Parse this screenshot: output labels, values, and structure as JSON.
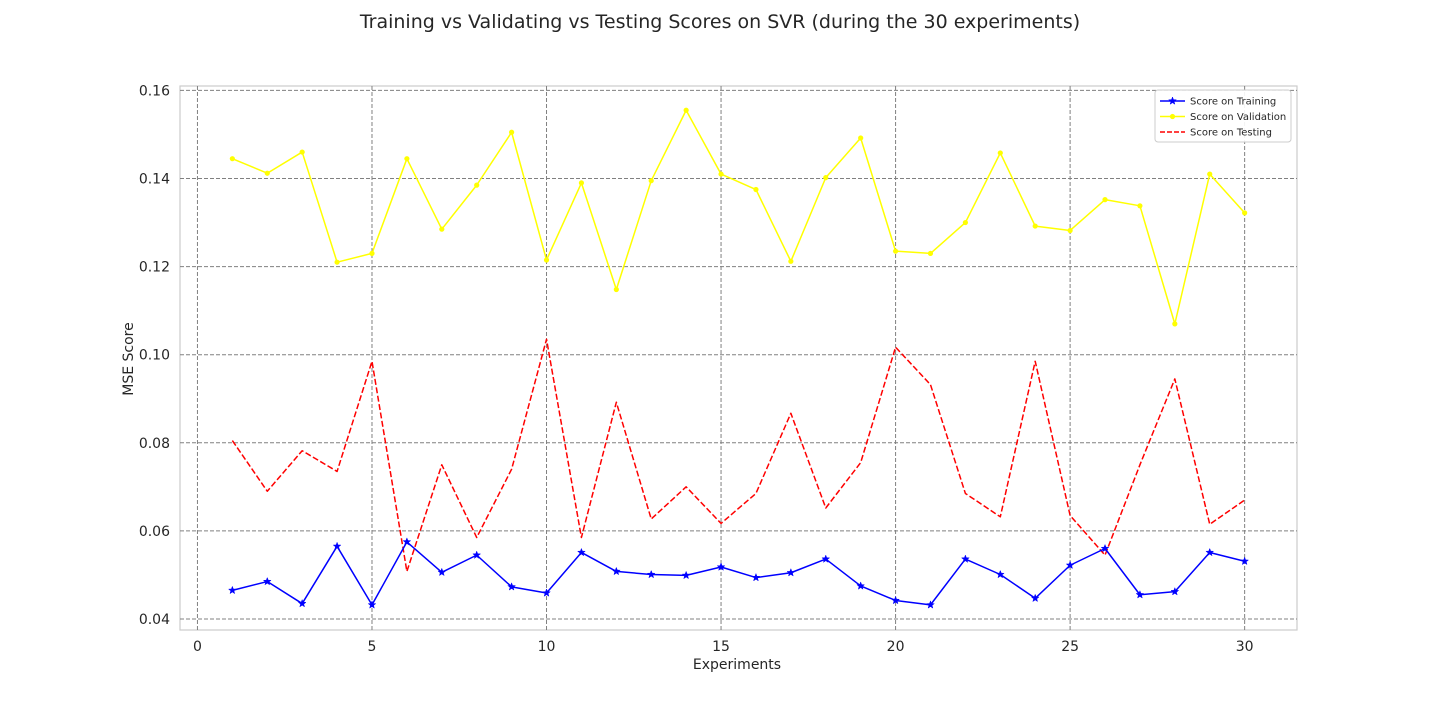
{
  "chart_data": {
    "type": "line",
    "title": "Training vs Validating vs Testing Scores on SVR (during the 30 experiments)",
    "xlabel": "Experiments",
    "ylabel": "MSE Score",
    "xlim": [
      -0.5,
      31.5
    ],
    "ylim": [
      0.0375,
      0.161
    ],
    "xticks": [
      0,
      5,
      10,
      15,
      20,
      25,
      30
    ],
    "xtick_labels": [
      "0",
      "5",
      "10",
      "15",
      "20",
      "25",
      "30"
    ],
    "yticks": [
      0.04,
      0.06,
      0.08,
      0.1,
      0.12,
      0.14,
      0.16
    ],
    "ytick_labels": [
      "0.04",
      "0.06",
      "0.08",
      "0.10",
      "0.12",
      "0.14",
      "0.16"
    ],
    "grid": true,
    "legend_position": "top-right",
    "x": [
      1,
      2,
      3,
      4,
      5,
      6,
      7,
      8,
      9,
      10,
      11,
      12,
      13,
      14,
      15,
      16,
      17,
      18,
      19,
      20,
      21,
      22,
      23,
      24,
      25,
      26,
      27,
      28,
      29,
      30
    ],
    "series": [
      {
        "name": "Score on Training",
        "color": "#0000ff",
        "style": "solid",
        "marker": "star",
        "values": [
          0.0465,
          0.0485,
          0.0435,
          0.0565,
          0.0432,
          0.0575,
          0.0506,
          0.0545,
          0.0473,
          0.0459,
          0.0551,
          0.0508,
          0.0501,
          0.0499,
          0.0518,
          0.0494,
          0.0505,
          0.0536,
          0.0475,
          0.0442,
          0.0432,
          0.0536,
          0.0501,
          0.0447,
          0.0522,
          0.056,
          0.0455,
          0.0462,
          0.0551,
          0.0531
        ]
      },
      {
        "name": "Score on Validation",
        "color": "#ffff00",
        "style": "solid",
        "marker": "dot",
        "values": [
          0.1445,
          0.1412,
          0.146,
          0.121,
          0.123,
          0.1445,
          0.1285,
          0.1385,
          0.1505,
          0.1215,
          0.139,
          0.1148,
          0.1395,
          0.1555,
          0.141,
          0.1375,
          0.1212,
          0.1402,
          0.1492,
          0.1235,
          0.123,
          0.13,
          0.1458,
          0.1292,
          0.1282,
          0.1352,
          0.1338,
          0.107,
          0.141,
          0.1322
        ]
      },
      {
        "name": "Score on Testing",
        "color": "#ff0000",
        "style": "dashed",
        "marker": "none",
        "values": [
          0.0805,
          0.069,
          0.0782,
          0.0735,
          0.0985,
          0.0508,
          0.075,
          0.0585,
          0.074,
          0.1035,
          0.0585,
          0.0892,
          0.0627,
          0.07,
          0.0617,
          0.0685,
          0.0867,
          0.0652,
          0.0755,
          0.1017,
          0.0932,
          0.0685,
          0.0632,
          0.0985,
          0.0635,
          0.0545,
          0.075,
          0.0945,
          0.0615,
          0.067
        ]
      }
    ]
  }
}
